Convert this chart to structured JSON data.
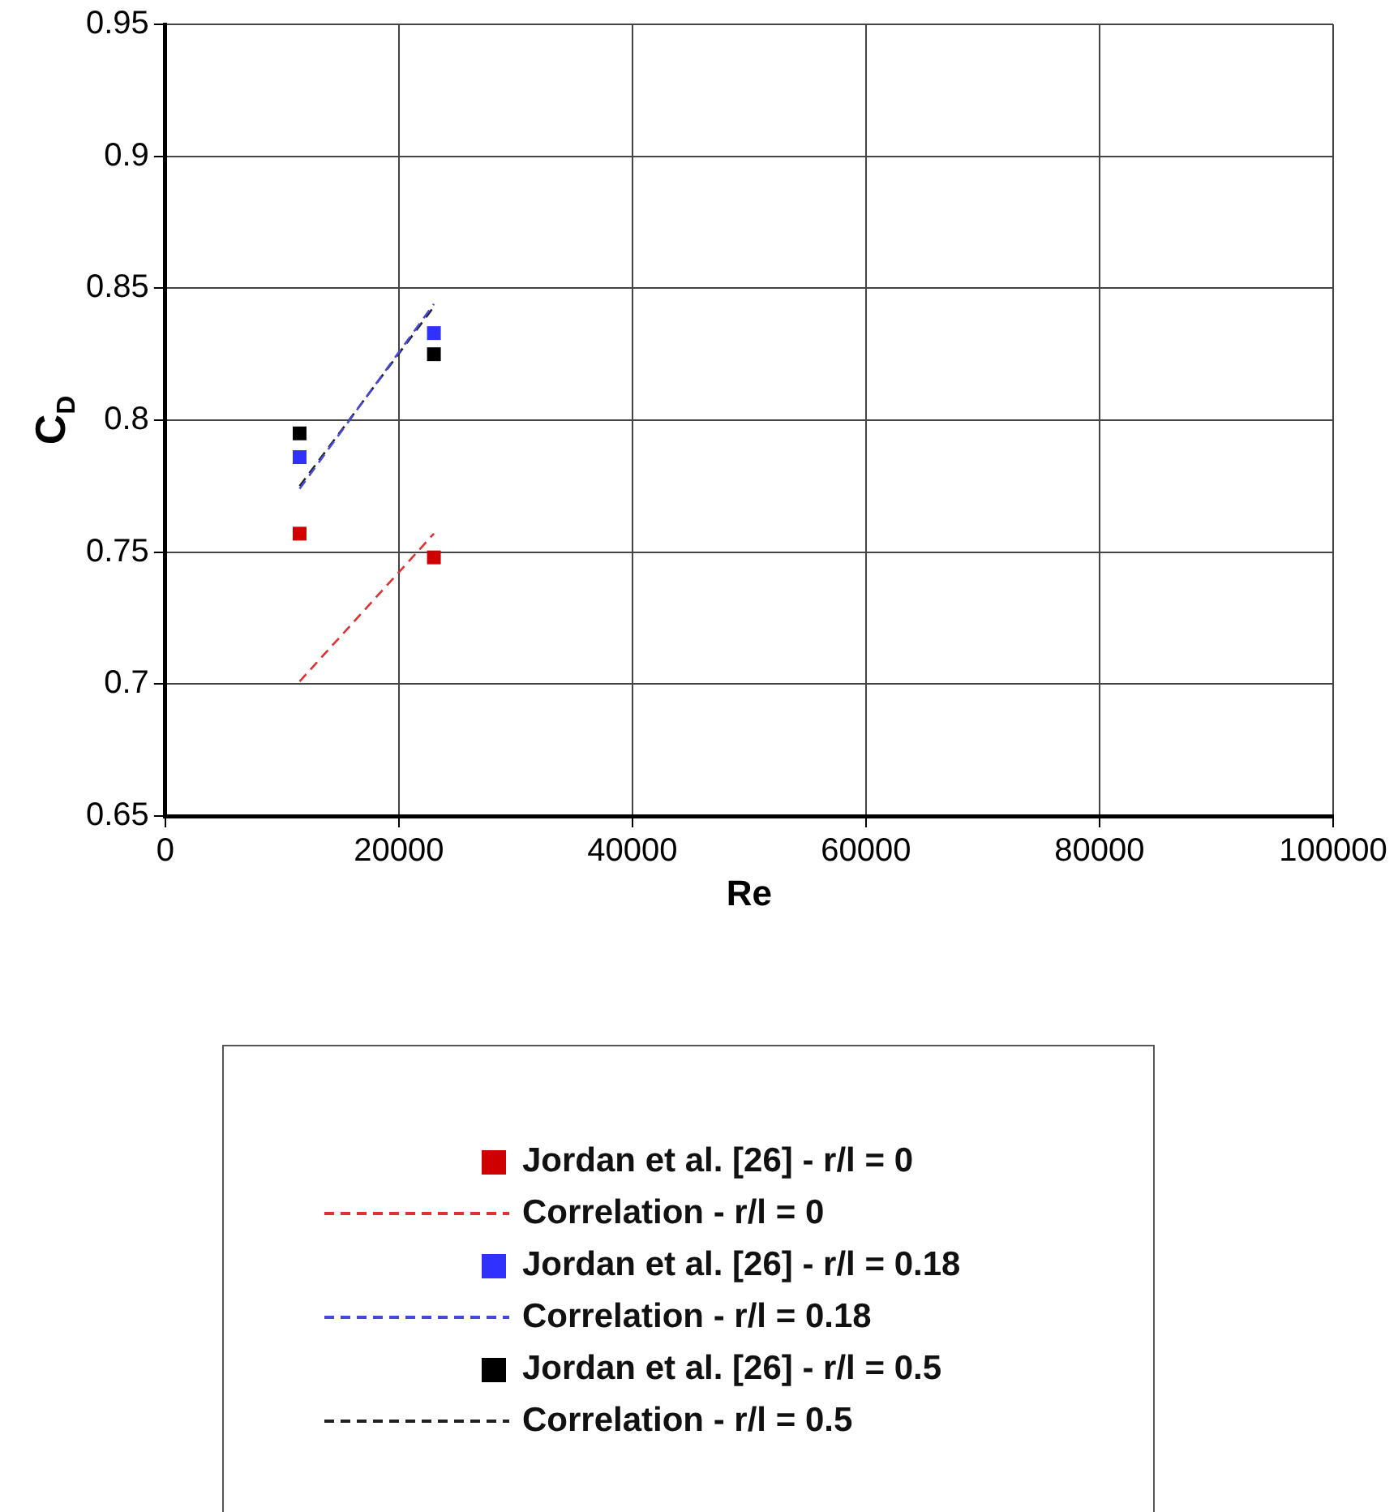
{
  "chart_data": {
    "type": "scatter",
    "xlabel": "Re",
    "ylabel": "C$_{D}$",
    "xlim": [
      0,
      100000
    ],
    "xticks": [
      0,
      20000,
      40000,
      60000,
      80000,
      100000
    ],
    "ylim": [
      0.65,
      0.95
    ],
    "yticks": [
      0.65,
      0.7,
      0.75,
      0.8,
      0.85,
      0.9,
      0.95
    ],
    "grid": true,
    "legend": "bottom",
    "x": [
      11500,
      23000
    ],
    "series": [
      {
        "name": "Jordan et al. [26] - r/l = 0",
        "marker": "square",
        "color": "#d00000",
        "values": [
          0.757,
          0.748
        ]
      },
      {
        "name": "Correlation - r/l = 0",
        "type": "line",
        "marker": "none",
        "line_style": "dashed",
        "color": "#e03030",
        "values": [
          0.701,
          0.757
        ]
      },
      {
        "name": "Jordan et al. [26] - r/l = 0.18",
        "marker": "square",
        "color": "#3030ff",
        "values": [
          0.786,
          0.833
        ]
      },
      {
        "name": "Correlation - r/l = 0.18",
        "type": "line",
        "marker": "none",
        "line_style": "dashed",
        "color": "#4848d8",
        "values": [
          0.774,
          0.844
        ]
      },
      {
        "name": "Jordan et al. [26] - r/l = 0.5",
        "marker": "square",
        "color": "#000000",
        "values": [
          0.795,
          0.825
        ]
      },
      {
        "name": "Correlation - r/l = 0.5",
        "type": "line",
        "marker": "none",
        "line_style": "dashed",
        "color": "#202020",
        "values": [
          0.775,
          0.843
        ]
      }
    ]
  }
}
